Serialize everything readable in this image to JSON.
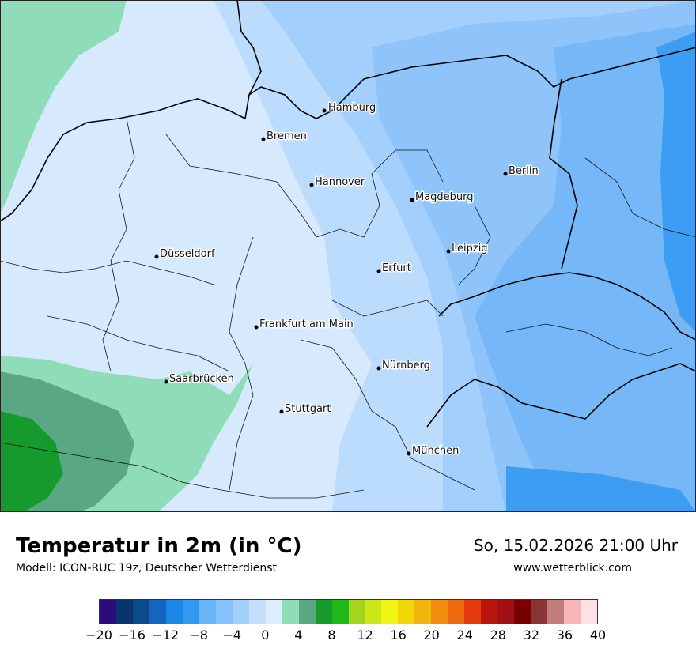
{
  "title": "Temperatur in 2m (in °C)",
  "model": "Modell: ICON-RUC 19z, Deutscher Wetterdienst",
  "datetime": "So, 15.02.2026 21:00 Uhr",
  "website": "www.wetterblick.com",
  "cities": [
    {
      "name": "Hamburg"
    },
    {
      "name": "Bremen"
    },
    {
      "name": "Hannover"
    },
    {
      "name": "Berlin"
    },
    {
      "name": "Magdeburg"
    },
    {
      "name": "Düsseldorf"
    },
    {
      "name": "Leipzig"
    },
    {
      "name": "Erfurt"
    },
    {
      "name": "Frankfurt am Main"
    },
    {
      "name": "Nürnberg"
    },
    {
      "name": "Saarbrücken"
    },
    {
      "name": "Stuttgart"
    },
    {
      "name": "München"
    }
  ],
  "legend": {
    "colors": [
      "#2e0b7a",
      "#0a3470",
      "#0c4a8e",
      "#1565c0",
      "#1a86e6",
      "#3199f3",
      "#68b4f8",
      "#86c2fb",
      "#a4d0fc",
      "#c4e0fe",
      "#dceefe",
      "#8fdcb8",
      "#5aa883",
      "#179a2d",
      "#21b81a",
      "#a4d41c",
      "#cde818",
      "#f0f612",
      "#f3d809",
      "#f2b50c",
      "#f18c0f",
      "#ee6a0f",
      "#e43a0d",
      "#b8150d",
      "#a31014",
      "#7a0000",
      "#8b3434",
      "#c37c7c",
      "#f7b6b6",
      "#ffe1e4"
    ],
    "ticks": [
      "−20",
      "−16",
      "−12",
      "−8",
      "−4",
      "0",
      "4",
      "8",
      "12",
      "16",
      "20",
      "24",
      "28",
      "32",
      "36",
      "40"
    ]
  }
}
